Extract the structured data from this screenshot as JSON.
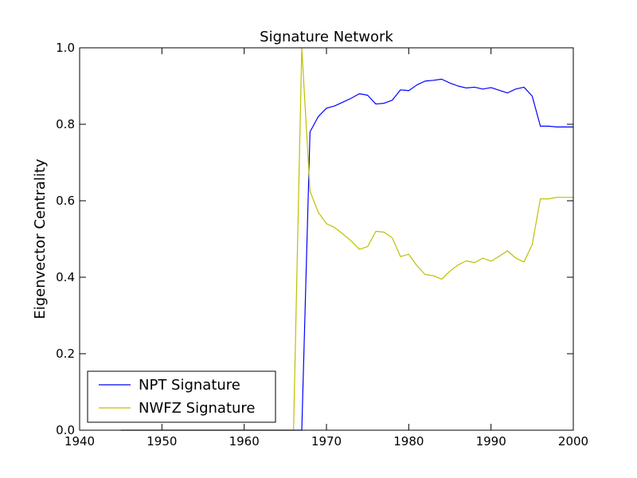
{
  "chart_data": {
    "type": "line",
    "title": "Signature Network",
    "xlabel": "",
    "ylabel": "Eigenvector Centrality",
    "xlim": [
      1940,
      2000
    ],
    "ylim": [
      0.0,
      1.0
    ],
    "xticks": [
      1940,
      1950,
      1960,
      1970,
      1980,
      1990,
      2000
    ],
    "xtick_labels": [
      "1940",
      "1950",
      "1960",
      "1970",
      "1980",
      "1990",
      "2000"
    ],
    "yticks": [
      0.0,
      0.2,
      0.4,
      0.6,
      0.8,
      1.0
    ],
    "ytick_labels": [
      "0.0",
      "0.2",
      "0.4",
      "0.6",
      "0.8",
      "1.0"
    ],
    "legend_position": "lower-left",
    "series": [
      {
        "name": "NPT Signature",
        "color": "#0000ff",
        "x": [
          1945,
          1946,
          1947,
          1948,
          1949,
          1950,
          1951,
          1952,
          1953,
          1954,
          1955,
          1956,
          1957,
          1958,
          1959,
          1960,
          1961,
          1962,
          1963,
          1964,
          1965,
          1966,
          1967,
          1968,
          1969,
          1970,
          1971,
          1972,
          1973,
          1974,
          1975,
          1976,
          1977,
          1978,
          1979,
          1980,
          1981,
          1982,
          1983,
          1984,
          1985,
          1986,
          1987,
          1988,
          1989,
          1990,
          1991,
          1992,
          1993,
          1994,
          1995,
          1996,
          1997,
          1998,
          1999,
          2000
        ],
        "values": [
          0,
          0,
          0,
          0,
          0,
          0,
          0,
          0,
          0,
          0,
          0,
          0,
          0,
          0,
          0,
          0,
          0,
          0,
          0,
          0,
          0,
          0,
          0,
          0.78,
          0.82,
          0.842,
          0.848,
          0.858,
          0.868,
          0.88,
          0.876,
          0.853,
          0.855,
          0.863,
          0.89,
          0.888,
          0.903,
          0.913,
          0.915,
          0.918,
          0.908,
          0.9,
          0.895,
          0.897,
          0.892,
          0.896,
          0.889,
          0.882,
          0.892,
          0.897,
          0.874,
          0.795,
          0.795,
          0.793,
          0.793,
          0.793
        ]
      },
      {
        "name": "NWFZ Signature",
        "color": "#bfbf00",
        "x": [
          1945,
          1946,
          1947,
          1948,
          1949,
          1950,
          1951,
          1952,
          1953,
          1954,
          1955,
          1956,
          1957,
          1958,
          1959,
          1960,
          1961,
          1962,
          1963,
          1964,
          1965,
          1966,
          1967,
          1968,
          1969,
          1970,
          1971,
          1972,
          1973,
          1974,
          1975,
          1976,
          1977,
          1978,
          1979,
          1980,
          1981,
          1982,
          1983,
          1984,
          1985,
          1986,
          1987,
          1988,
          1989,
          1990,
          1991,
          1992,
          1993,
          1994,
          1995,
          1996,
          1997,
          1998,
          1999,
          2000
        ],
        "values": [
          0,
          0,
          0,
          0,
          0,
          0,
          0,
          0,
          0,
          0,
          0,
          0,
          0,
          0,
          0,
          0,
          0,
          0,
          0,
          0,
          0,
          0,
          1.0,
          0.625,
          0.57,
          0.54,
          0.53,
          0.513,
          0.495,
          0.473,
          0.48,
          0.52,
          0.518,
          0.503,
          0.454,
          0.46,
          0.43,
          0.407,
          0.404,
          0.395,
          0.416,
          0.432,
          0.443,
          0.438,
          0.45,
          0.442,
          0.455,
          0.469,
          0.45,
          0.44,
          0.485,
          0.605,
          0.605,
          0.609,
          0.609,
          0.609
        ]
      }
    ]
  }
}
